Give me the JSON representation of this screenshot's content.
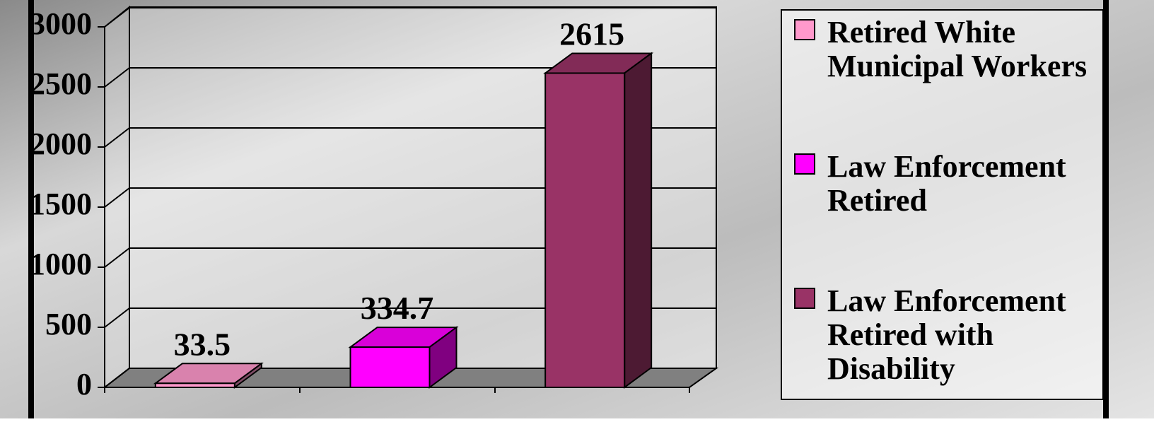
{
  "chart_data": {
    "type": "bar3d",
    "series": [
      {
        "name": "Retired White Municipal Workers",
        "color": "#ff99cc",
        "values": [
          33.5
        ]
      },
      {
        "name": "Law Enforcement Retired",
        "color": "#ff00ff",
        "values": [
          334.7
        ]
      },
      {
        "name": "Law Enforcement Retired with Disability",
        "color": "#993366",
        "values": [
          2615
        ]
      }
    ],
    "ylim": [
      0,
      3000
    ],
    "yticks": [
      0,
      500,
      1000,
      1500,
      2000,
      2500,
      3000
    ],
    "grid": true,
    "legend": "right"
  }
}
